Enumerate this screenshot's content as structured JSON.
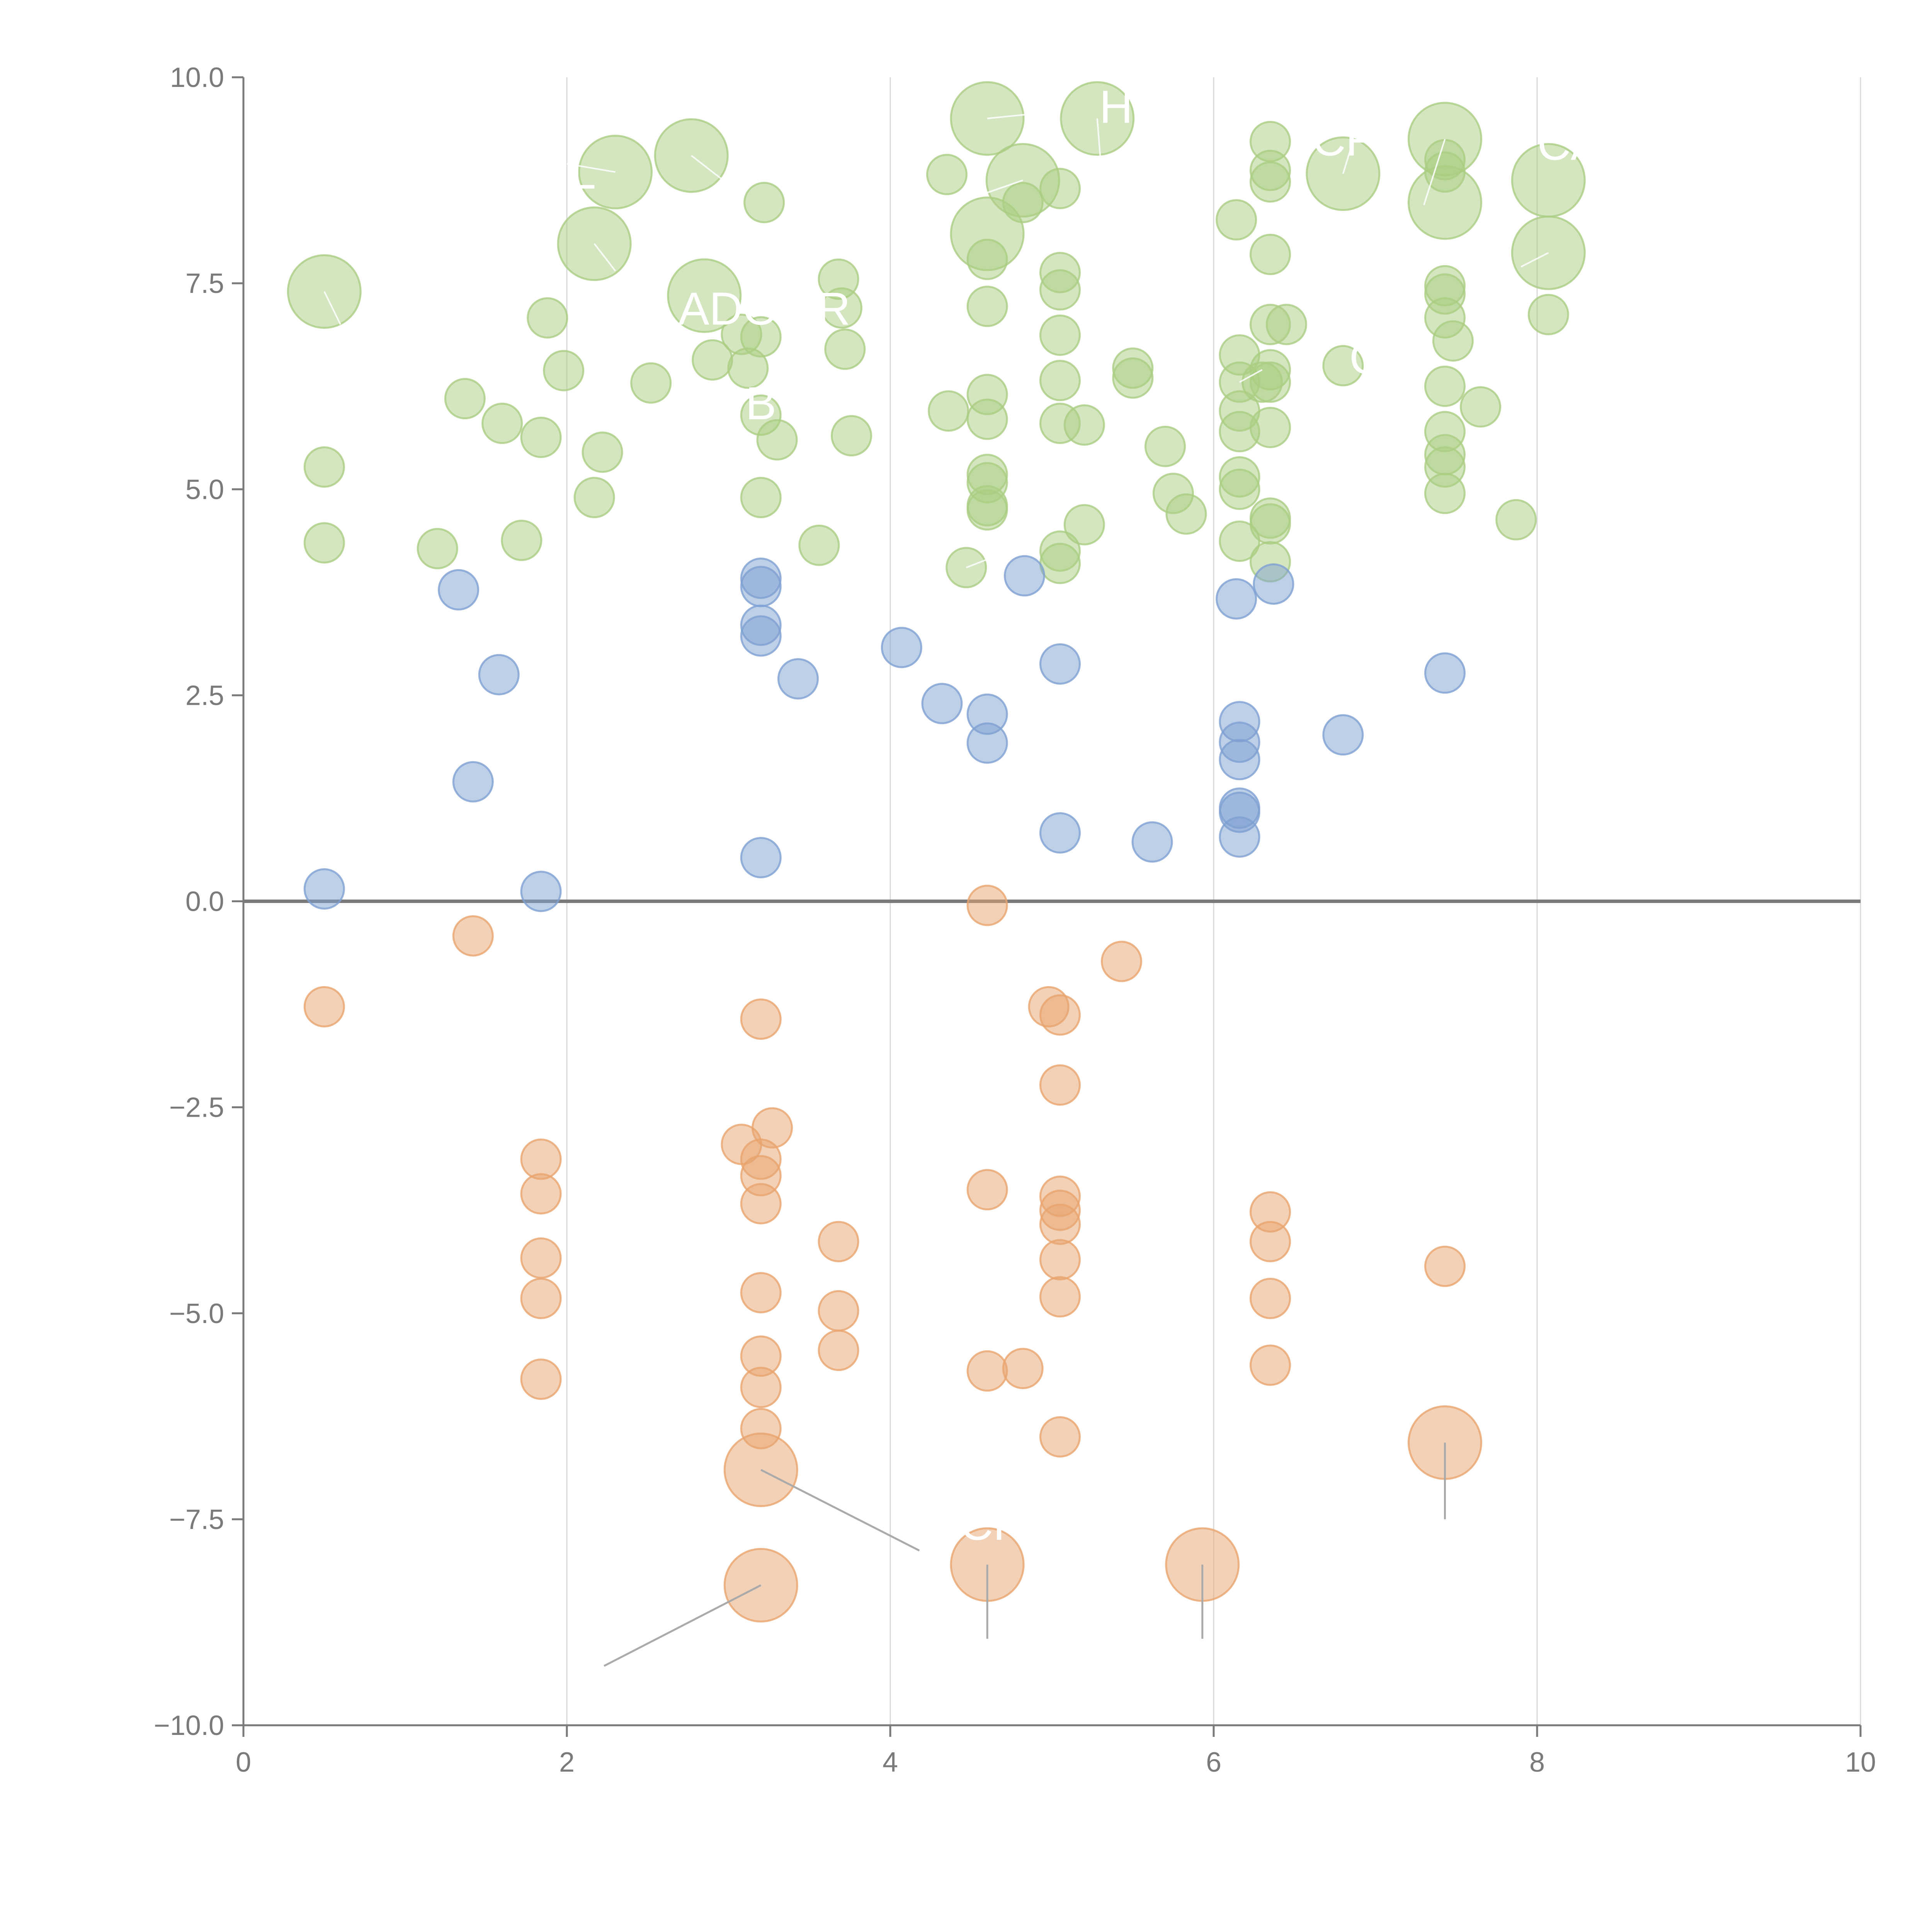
{
  "chart_data": {
    "type": "scatter",
    "xlim": [
      0,
      10
    ],
    "ylim": [
      -10,
      10
    ],
    "x_ticks": [
      "0",
      "2",
      "4",
      "6",
      "8",
      "10"
    ],
    "y_ticks": [
      "10.0",
      "7.5",
      "5.0",
      "2.5",
      "0.0",
      "−2.5",
      "−5.0",
      "−7.5",
      "−10.0"
    ],
    "x_tick_values": [
      0,
      2,
      4,
      6,
      8,
      10
    ],
    "y_tick_values": [
      10,
      7.5,
      5,
      2.5,
      0,
      -2.5,
      -5,
      -7.5,
      -10
    ],
    "vertical_grid": true,
    "horizontal_grid": false,
    "reference_line_y": 0,
    "colors": {
      "green": "#aacd82",
      "blue": "#7ea0d2",
      "orange": "#e8a46e"
    },
    "series": [
      {
        "color": "green",
        "points": [
          [
            0.5,
            7.4,
            2
          ],
          [
            0.5,
            5.27,
            1
          ],
          [
            0.5,
            4.35,
            1
          ],
          [
            1.2,
            4.28,
            1
          ],
          [
            1.37,
            6.1,
            1
          ],
          [
            1.6,
            5.8,
            1
          ],
          [
            1.72,
            4.38,
            1
          ],
          [
            1.84,
            5.63,
            1
          ],
          [
            1.88,
            7.08,
            1
          ],
          [
            1.98,
            6.44,
            1
          ],
          [
            2.17,
            4.9,
            1
          ],
          [
            2.17,
            7.98,
            2
          ],
          [
            2.22,
            5.45,
            1
          ],
          [
            2.3,
            8.85,
            2
          ],
          [
            2.52,
            6.29,
            1
          ],
          [
            2.77,
            9.05,
            2
          ],
          [
            2.85,
            7.35,
            2
          ],
          [
            2.9,
            6.57,
            1
          ],
          [
            3.08,
            6.88,
            1
          ],
          [
            3.12,
            6.47,
            1
          ],
          [
            3.2,
            6.85,
            1
          ],
          [
            3.2,
            5.9,
            1
          ],
          [
            3.2,
            4.9,
            1
          ],
          [
            3.22,
            8.48,
            1
          ],
          [
            3.3,
            5.6,
            1
          ],
          [
            3.56,
            4.32,
            1
          ],
          [
            3.68,
            7.55,
            1
          ],
          [
            3.7,
            7.2,
            1
          ],
          [
            3.72,
            6.7,
            1
          ],
          [
            3.76,
            5.65,
            1
          ],
          [
            4.35,
            8.82,
            1
          ],
          [
            4.36,
            5.95,
            1
          ],
          [
            4.6,
            9.5,
            2
          ],
          [
            4.6,
            8.1,
            2
          ],
          [
            4.6,
            7.79,
            1
          ],
          [
            4.6,
            7.22,
            1
          ],
          [
            4.6,
            6.15,
            1
          ],
          [
            4.6,
            5.85,
            1
          ],
          [
            4.6,
            5.18,
            1
          ],
          [
            4.6,
            5.08,
            1
          ],
          [
            4.6,
            4.8,
            1
          ],
          [
            4.6,
            4.75,
            1
          ],
          [
            4.47,
            4.05,
            1
          ],
          [
            4.82,
            8.75,
            2
          ],
          [
            4.82,
            8.48,
            1
          ],
          [
            5.05,
            8.65,
            1
          ],
          [
            5.05,
            7.63,
            1
          ],
          [
            5.05,
            7.42,
            1
          ],
          [
            5.05,
            6.87,
            1
          ],
          [
            5.05,
            6.32,
            1
          ],
          [
            5.05,
            5.8,
            1
          ],
          [
            5.05,
            4.25,
            1
          ],
          [
            5.05,
            4.1,
            1
          ],
          [
            5.2,
            5.78,
            1
          ],
          [
            5.2,
            4.57,
            1
          ],
          [
            5.28,
            9.5,
            2
          ],
          [
            5.5,
            6.47,
            1
          ],
          [
            5.5,
            6.35,
            1
          ],
          [
            5.7,
            5.52,
            1
          ],
          [
            5.75,
            4.95,
            1
          ],
          [
            5.83,
            4.7,
            1
          ],
          [
            6.14,
            8.27,
            1
          ],
          [
            6.16,
            6.63,
            1
          ],
          [
            6.16,
            6.3,
            1
          ],
          [
            6.16,
            5.95,
            1
          ],
          [
            6.16,
            5.7,
            1
          ],
          [
            6.16,
            5.15,
            1
          ],
          [
            6.16,
            5.0,
            1
          ],
          [
            6.16,
            4.37,
            1
          ],
          [
            6.35,
            9.22,
            1
          ],
          [
            6.35,
            8.87,
            1
          ],
          [
            6.35,
            8.73,
            1
          ],
          [
            6.35,
            7.85,
            1
          ],
          [
            6.35,
            7.0,
            1
          ],
          [
            6.35,
            6.45,
            1
          ],
          [
            6.35,
            6.3,
            1
          ],
          [
            6.35,
            5.75,
            1
          ],
          [
            6.35,
            4.65,
            1
          ],
          [
            6.35,
            4.58,
            1
          ],
          [
            6.35,
            4.12,
            1
          ],
          [
            6.3,
            6.3,
            1
          ],
          [
            6.45,
            7.0,
            1
          ],
          [
            6.8,
            8.83,
            2
          ],
          [
            6.8,
            6.5,
            1
          ],
          [
            7.43,
            9.25,
            2
          ],
          [
            7.43,
            8.48,
            2
          ],
          [
            7.43,
            9.0,
            1
          ],
          [
            7.43,
            8.85,
            1
          ],
          [
            7.43,
            7.47,
            1
          ],
          [
            7.43,
            7.37,
            1
          ],
          [
            7.43,
            7.08,
            1
          ],
          [
            7.43,
            6.25,
            1
          ],
          [
            7.43,
            5.7,
            1
          ],
          [
            7.43,
            5.42,
            1
          ],
          [
            7.43,
            5.27,
            1
          ],
          [
            7.43,
            4.95,
            1
          ],
          [
            7.48,
            6.8,
            1
          ],
          [
            7.65,
            6.0,
            1
          ],
          [
            7.87,
            4.63,
            1
          ],
          [
            8.07,
            8.75,
            2
          ],
          [
            8.07,
            7.87,
            2
          ],
          [
            8.07,
            7.12,
            1
          ]
        ]
      },
      {
        "color": "blue",
        "points": [
          [
            0.5,
            0.15,
            1
          ],
          [
            1.33,
            3.78,
            1
          ],
          [
            1.42,
            1.45,
            1
          ],
          [
            1.58,
            2.75,
            1
          ],
          [
            1.84,
            0.12,
            1
          ],
          [
            3.2,
            3.92,
            1
          ],
          [
            3.2,
            3.82,
            1
          ],
          [
            3.2,
            3.35,
            1
          ],
          [
            3.2,
            3.22,
            1
          ],
          [
            3.2,
            0.53,
            1
          ],
          [
            3.43,
            2.7,
            1
          ],
          [
            4.07,
            3.08,
            1
          ],
          [
            4.32,
            2.4,
            1
          ],
          [
            4.6,
            2.27,
            1
          ],
          [
            4.6,
            1.92,
            1
          ],
          [
            4.83,
            3.95,
            1
          ],
          [
            5.05,
            2.88,
            1
          ],
          [
            5.05,
            0.83,
            1
          ],
          [
            5.62,
            0.72,
            1
          ],
          [
            6.14,
            3.67,
            1
          ],
          [
            6.16,
            2.18,
            1
          ],
          [
            6.16,
            1.93,
            1
          ],
          [
            6.16,
            1.72,
            1
          ],
          [
            6.16,
            1.13,
            1
          ],
          [
            6.16,
            1.08,
            1
          ],
          [
            6.16,
            0.78,
            1
          ],
          [
            6.37,
            3.85,
            1
          ],
          [
            6.8,
            2.02,
            1
          ],
          [
            7.43,
            2.77,
            1
          ]
        ]
      },
      {
        "color": "orange",
        "points": [
          [
            0.5,
            -1.28,
            1
          ],
          [
            1.42,
            -0.42,
            1
          ],
          [
            1.84,
            -3.13,
            1
          ],
          [
            1.84,
            -3.55,
            1
          ],
          [
            1.84,
            -4.33,
            1
          ],
          [
            1.84,
            -4.82,
            1
          ],
          [
            1.84,
            -5.8,
            1
          ],
          [
            3.08,
            -2.95,
            1
          ],
          [
            3.2,
            -1.43,
            1
          ],
          [
            3.2,
            -3.13,
            1
          ],
          [
            3.2,
            -3.33,
            1
          ],
          [
            3.2,
            -3.67,
            1
          ],
          [
            3.2,
            -4.75,
            1
          ],
          [
            3.2,
            -5.52,
            1
          ],
          [
            3.2,
            -5.9,
            1
          ],
          [
            3.2,
            -6.4,
            1
          ],
          [
            3.2,
            -6.9,
            2
          ],
          [
            3.2,
            -8.3,
            2
          ],
          [
            3.27,
            -2.75,
            1
          ],
          [
            3.68,
            -4.13,
            1
          ],
          [
            3.68,
            -4.97,
            1
          ],
          [
            3.68,
            -5.45,
            1
          ],
          [
            4.6,
            -0.05,
            1
          ],
          [
            4.6,
            -3.5,
            1
          ],
          [
            4.6,
            -5.7,
            1
          ],
          [
            4.6,
            -8.05,
            2
          ],
          [
            4.82,
            -5.67,
            1
          ],
          [
            4.98,
            -1.28,
            1
          ],
          [
            5.05,
            -1.38,
            1
          ],
          [
            5.05,
            -2.23,
            1
          ],
          [
            5.05,
            -3.58,
            1
          ],
          [
            5.05,
            -3.75,
            1
          ],
          [
            5.05,
            -3.92,
            1
          ],
          [
            5.05,
            -4.35,
            1
          ],
          [
            5.05,
            -4.8,
            1
          ],
          [
            5.05,
            -6.5,
            1
          ],
          [
            5.43,
            -0.73,
            1
          ],
          [
            5.93,
            -8.05,
            2
          ],
          [
            6.35,
            -3.77,
            1
          ],
          [
            6.35,
            -4.13,
            1
          ],
          [
            6.35,
            -4.82,
            1
          ],
          [
            6.35,
            -5.63,
            1
          ],
          [
            7.43,
            -4.43,
            1
          ],
          [
            7.43,
            -6.57,
            2
          ]
        ]
      }
    ],
    "labels": [
      {
        "text": "L",
        "x": 2.1,
        "y": 8.65
      },
      {
        "text": "ADO",
        "x": 3.0,
        "y": 7.0
      },
      {
        "text": "R",
        "x": 3.65,
        "y": 7.0
      },
      {
        "text": "B",
        "x": 3.2,
        "y": 5.85
      },
      {
        "text": "HR",
        "x": 5.5,
        "y": 9.45
      },
      {
        "text": "CF",
        "x": 6.8,
        "y": 9.05
      },
      {
        "text": "CA",
        "x": 8.2,
        "y": 9.0
      },
      {
        "text": "G",
        "x": 6.95,
        "y": 6.4
      },
      {
        "text": "CF",
        "x": 4.62,
        "y": -7.75
      }
    ],
    "leaders": [
      {
        "from": [
          0.5,
          7.4
        ],
        "to": [
          0.6,
          7.0
        ],
        "dark": false
      },
      {
        "from": [
          2.3,
          8.85
        ],
        "to": [
          2.0,
          8.95
        ],
        "dark": false
      },
      {
        "from": [
          2.17,
          7.98
        ],
        "to": [
          2.3,
          7.65
        ],
        "dark": false
      },
      {
        "from": [
          2.77,
          9.05
        ],
        "to": [
          3.0,
          8.7
        ],
        "dark": false
      },
      {
        "from": [
          4.6,
          9.5
        ],
        "to": [
          4.85,
          9.55
        ],
        "dark": false
      },
      {
        "from": [
          5.28,
          9.5
        ],
        "to": [
          5.3,
          9.0
        ],
        "dark": false
      },
      {
        "from": [
          4.82,
          8.75
        ],
        "to": [
          4.6,
          8.6
        ],
        "dark": false
      },
      {
        "from": [
          6.8,
          8.83
        ],
        "to": [
          6.85,
          9.15
        ],
        "dark": false
      },
      {
        "from": [
          7.43,
          9.25
        ],
        "to": [
          7.3,
          8.45
        ],
        "dark": false
      },
      {
        "from": [
          8.07,
          7.87
        ],
        "to": [
          7.9,
          7.7
        ],
        "dark": false
      },
      {
        "from": [
          6.16,
          6.3
        ],
        "to": [
          6.3,
          6.45
        ],
        "dark": false
      },
      {
        "from": [
          4.47,
          4.05
        ],
        "to": [
          4.6,
          4.15
        ],
        "dark": false
      },
      {
        "from": [
          3.2,
          -6.9
        ],
        "to": [
          4.18,
          -7.88
        ],
        "dark": true
      },
      {
        "from": [
          3.2,
          -8.3
        ],
        "to": [
          2.23,
          -9.28
        ],
        "dark": true
      },
      {
        "from": [
          4.6,
          -8.05
        ],
        "to": [
          4.6,
          -8.95
        ],
        "dark": true
      },
      {
        "from": [
          5.93,
          -8.05
        ],
        "to": [
          5.93,
          -8.95
        ],
        "dark": true
      },
      {
        "from": [
          7.43,
          -6.57
        ],
        "to": [
          7.43,
          -7.5
        ],
        "dark": true
      }
    ]
  }
}
